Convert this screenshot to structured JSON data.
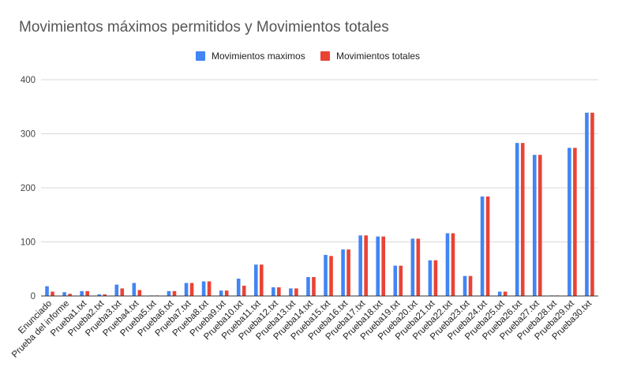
{
  "chart_data": {
    "type": "bar",
    "title": "Movimientos máximos permitidos y Movimientos totales",
    "xlabel": "",
    "ylabel": "",
    "ylim": [
      0,
      400
    ],
    "yticks": [
      0,
      100,
      200,
      300,
      400
    ],
    "grid": true,
    "legend_position": "top-center",
    "categories": [
      "Enunciado",
      "Prueba del informe",
      "Prueba1.txt",
      "Prueba2.txt",
      "Prueba3.txt",
      "Prueba4.txt",
      "Prueba5.txt",
      "Prueba6.txt",
      "Prueba7.txt",
      "Prueba8.txt",
      "Prueba9.txt",
      "Prueba10.txt",
      "Prueba11.txt",
      "Prueba12.txt",
      "Prueba13.txt",
      "Prueba14.txt",
      "Prueba15.txt",
      "Prueba16.txt",
      "Prueba17.txt",
      "Prueba18.txt",
      "Prueba19.txt",
      "Prueba20.txt",
      "Prueba21.txt",
      "Prueba22.txt",
      "Prueba23.txt",
      "Prueba24.txt",
      "Prueba25.txt",
      "Prueba26.txt",
      "Prueba27.txt",
      "Prueba28.txt",
      "Prueba29.txt",
      "Prueba30.txt"
    ],
    "series": [
      {
        "name": "Movimientos maximos",
        "color": "#4285f4",
        "values": [
          18,
          7,
          9,
          3,
          21,
          24,
          1,
          9,
          24,
          27,
          10,
          32,
          58,
          16,
          14,
          35,
          76,
          86,
          112,
          110,
          56,
          106,
          66,
          116,
          37,
          184,
          8,
          283,
          261,
          1,
          274,
          339
        ]
      },
      {
        "name": "Movimientos totales",
        "color": "#ea4335",
        "values": [
          8,
          4,
          9,
          3,
          14,
          11,
          1,
          9,
          24,
          27,
          10,
          19,
          58,
          16,
          14,
          35,
          74,
          86,
          112,
          110,
          56,
          106,
          66,
          116,
          37,
          184,
          8,
          283,
          261,
          1,
          274,
          339
        ]
      }
    ]
  }
}
